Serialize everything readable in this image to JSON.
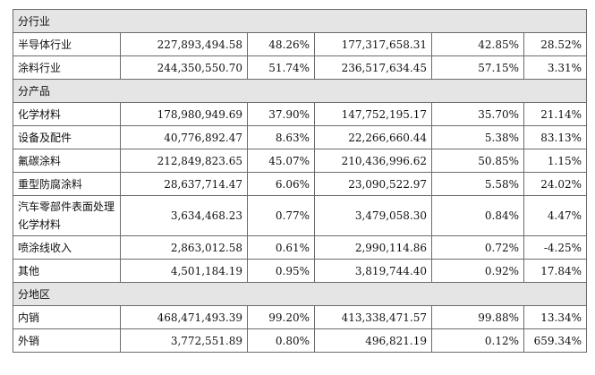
{
  "sections": [
    {
      "title": "分行业",
      "rows": [
        {
          "name": "半导体行业",
          "cols": [
            "227,893,494.58",
            "48.26%",
            "177,317,658.31",
            "42.85%",
            "28.52%"
          ]
        },
        {
          "name": "涂料行业",
          "cols": [
            "244,350,550.70",
            "51.74%",
            "236,517,634.45",
            "57.15%",
            "3.31%"
          ]
        }
      ]
    },
    {
      "title": "分产品",
      "rows": [
        {
          "name": "化学材料",
          "cols": [
            "178,980,949.69",
            "37.90%",
            "147,752,195.17",
            "35.70%",
            "21.14%"
          ]
        },
        {
          "name": "设备及配件",
          "cols": [
            "40,776,892.47",
            "8.63%",
            "22,266,660.44",
            "5.38%",
            "83.13%"
          ]
        },
        {
          "name": "氟碳涂料",
          "cols": [
            "212,849,823.65",
            "45.07%",
            "210,436,996.62",
            "50.85%",
            "1.15%"
          ]
        },
        {
          "name": "重型防腐涂料",
          "cols": [
            "28,637,714.47",
            "6.06%",
            "23,090,522.97",
            "5.58%",
            "24.02%"
          ]
        },
        {
          "name": "汽车零部件表面处理化学材料",
          "cols": [
            "3,634,468.23",
            "0.77%",
            "3,479,058.30",
            "0.84%",
            "4.47%"
          ]
        },
        {
          "name": "喷涂线收入",
          "cols": [
            "2,863,012.58",
            "0.61%",
            "2,990,114.86",
            "0.72%",
            "-4.25%"
          ]
        },
        {
          "name": "其他",
          "cols": [
            "4,501,184.19",
            "0.95%",
            "3,819,744.40",
            "0.92%",
            "17.84%"
          ]
        }
      ]
    },
    {
      "title": "分地区",
      "rows": [
        {
          "name": "内销",
          "cols": [
            "468,471,493.39",
            "99.20%",
            "413,338,471.57",
            "99.88%",
            "13.34%"
          ]
        },
        {
          "name": "外销",
          "cols": [
            "3,772,551.89",
            "0.80%",
            "496,821.19",
            "0.12%",
            "659.34%"
          ]
        }
      ]
    }
  ],
  "colors": {
    "section_background": "#e5e5e5",
    "border": "#6b6b6b",
    "text": "#111111"
  }
}
